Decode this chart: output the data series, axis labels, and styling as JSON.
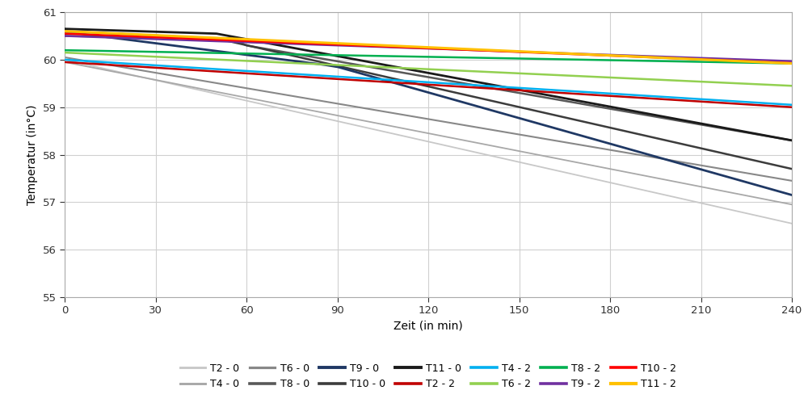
{
  "title": "",
  "xlabel": "Zeit (in min)",
  "ylabel": "Temperatur (in°C)",
  "xlim": [
    0,
    240
  ],
  "ylim": [
    55,
    61
  ],
  "yticks": [
    55,
    56,
    57,
    58,
    59,
    60,
    61
  ],
  "xticks": [
    0,
    30,
    60,
    90,
    120,
    150,
    180,
    210,
    240
  ],
  "series": {
    "T2-0": {
      "color": "#c8c8c8",
      "lw": 1.3
    },
    "T4-0": {
      "color": "#a8a8a8",
      "lw": 1.3
    },
    "T6-0": {
      "color": "#888888",
      "lw": 1.5
    },
    "T8-0": {
      "color": "#585858",
      "lw": 1.8
    },
    "T9-0": {
      "color": "#1f3864",
      "lw": 2.0
    },
    "T10-0": {
      "color": "#3c3c3c",
      "lw": 1.8
    },
    "T11-0": {
      "color": "#1a1a1a",
      "lw": 2.0
    },
    "T2-2": {
      "color": "#c00000",
      "lw": 1.8
    },
    "T4-2": {
      "color": "#00b0f0",
      "lw": 1.8
    },
    "T6-2": {
      "color": "#92d050",
      "lw": 1.8
    },
    "T8-2": {
      "color": "#00b050",
      "lw": 1.8
    },
    "T9-2": {
      "color": "#7030a0",
      "lw": 1.8
    },
    "T10-2": {
      "color": "#ff0000",
      "lw": 1.8
    },
    "T11-2": {
      "color": "#ffc000",
      "lw": 2.2
    }
  },
  "legend_order_row1": [
    "T2-0",
    "T4-0",
    "T6-0",
    "T8-0",
    "T9-0",
    "T10-0",
    "T11-0"
  ],
  "legend_order_row2": [
    "T2-2",
    "T4-2",
    "T6-2",
    "T8-2",
    "T9-2",
    "T10-2",
    "T11-2"
  ],
  "background_color": "#ffffff",
  "grid_color": "#d0d0d0"
}
